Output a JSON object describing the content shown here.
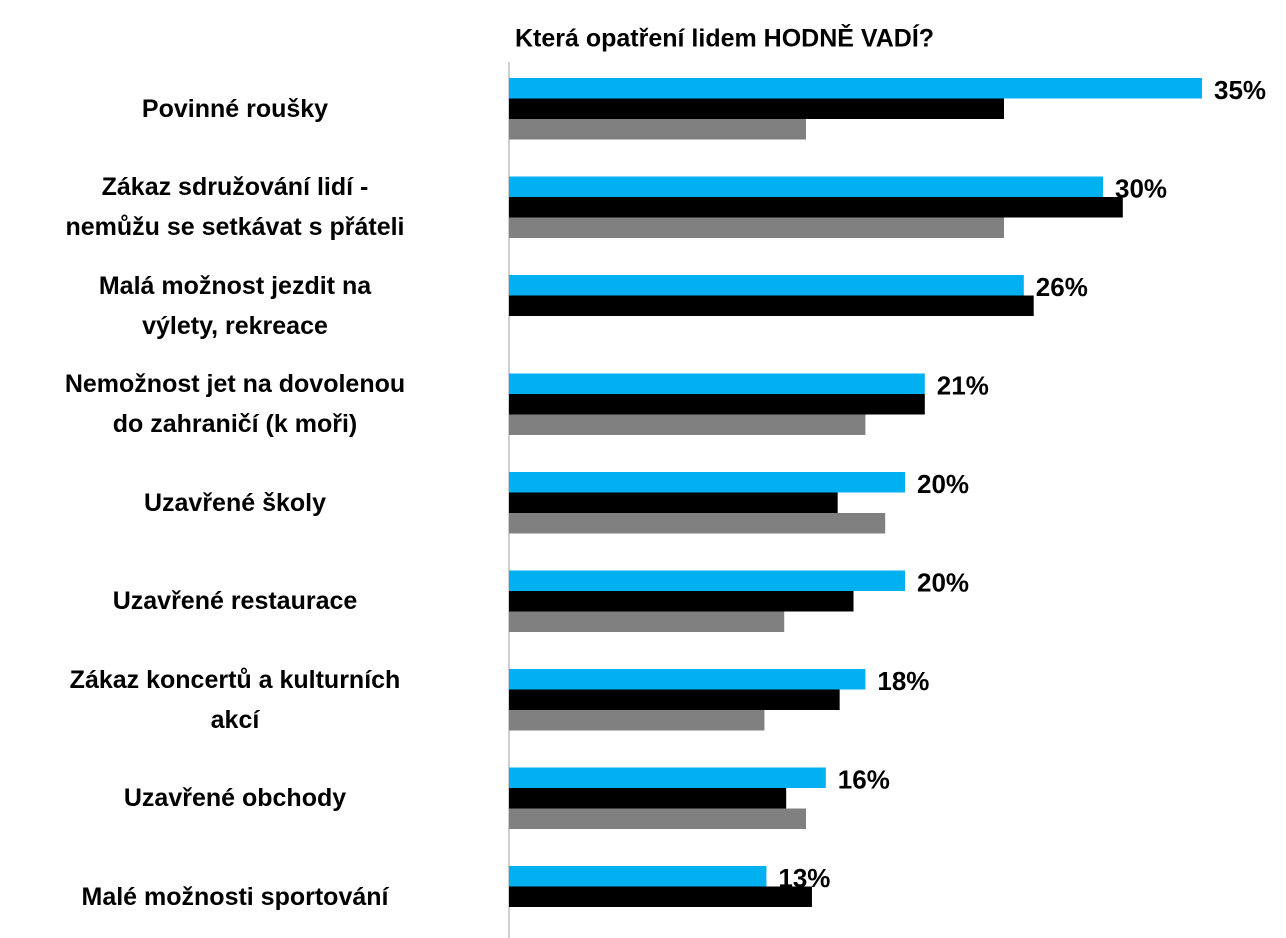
{
  "chart_data": {
    "type": "bar",
    "orientation": "horizontal",
    "title": "Která opatření lidem HODNĚ VADÍ?",
    "categories": [
      "Povinné roušky",
      "Zákaz sdružování lidí -\nnemůžu se setkávat s přáteli",
      "Malá možnost jezdit na\nvýlety, rekreace",
      "Nemožnost jet na dovolenou\ndo zahraničí (k moři)",
      "Uzavřené školy",
      "Uzavřené restaurace",
      "Zákaz koncertů a kulturních\nakcí",
      "Uzavřené obchody",
      "Malé možnosti sportování"
    ],
    "series": [
      {
        "color": "#00b0f0",
        "values": [
          35,
          30,
          26,
          21,
          20,
          20,
          18,
          16,
          13
        ],
        "value_labels": [
          "35%",
          "30%",
          "26%",
          "21%",
          "20%",
          "20%",
          "18%",
          "16%",
          "13%"
        ]
      },
      {
        "color": "#000000",
        "values": [
          25,
          31,
          26.5,
          21,
          16.6,
          17.4,
          16.7,
          14,
          15.3
        ]
      },
      {
        "color": "#808080",
        "values": [
          15,
          25,
          null,
          18,
          19,
          13.9,
          12.9,
          15,
          null
        ]
      }
    ],
    "xlim": [
      0,
      35
    ]
  }
}
